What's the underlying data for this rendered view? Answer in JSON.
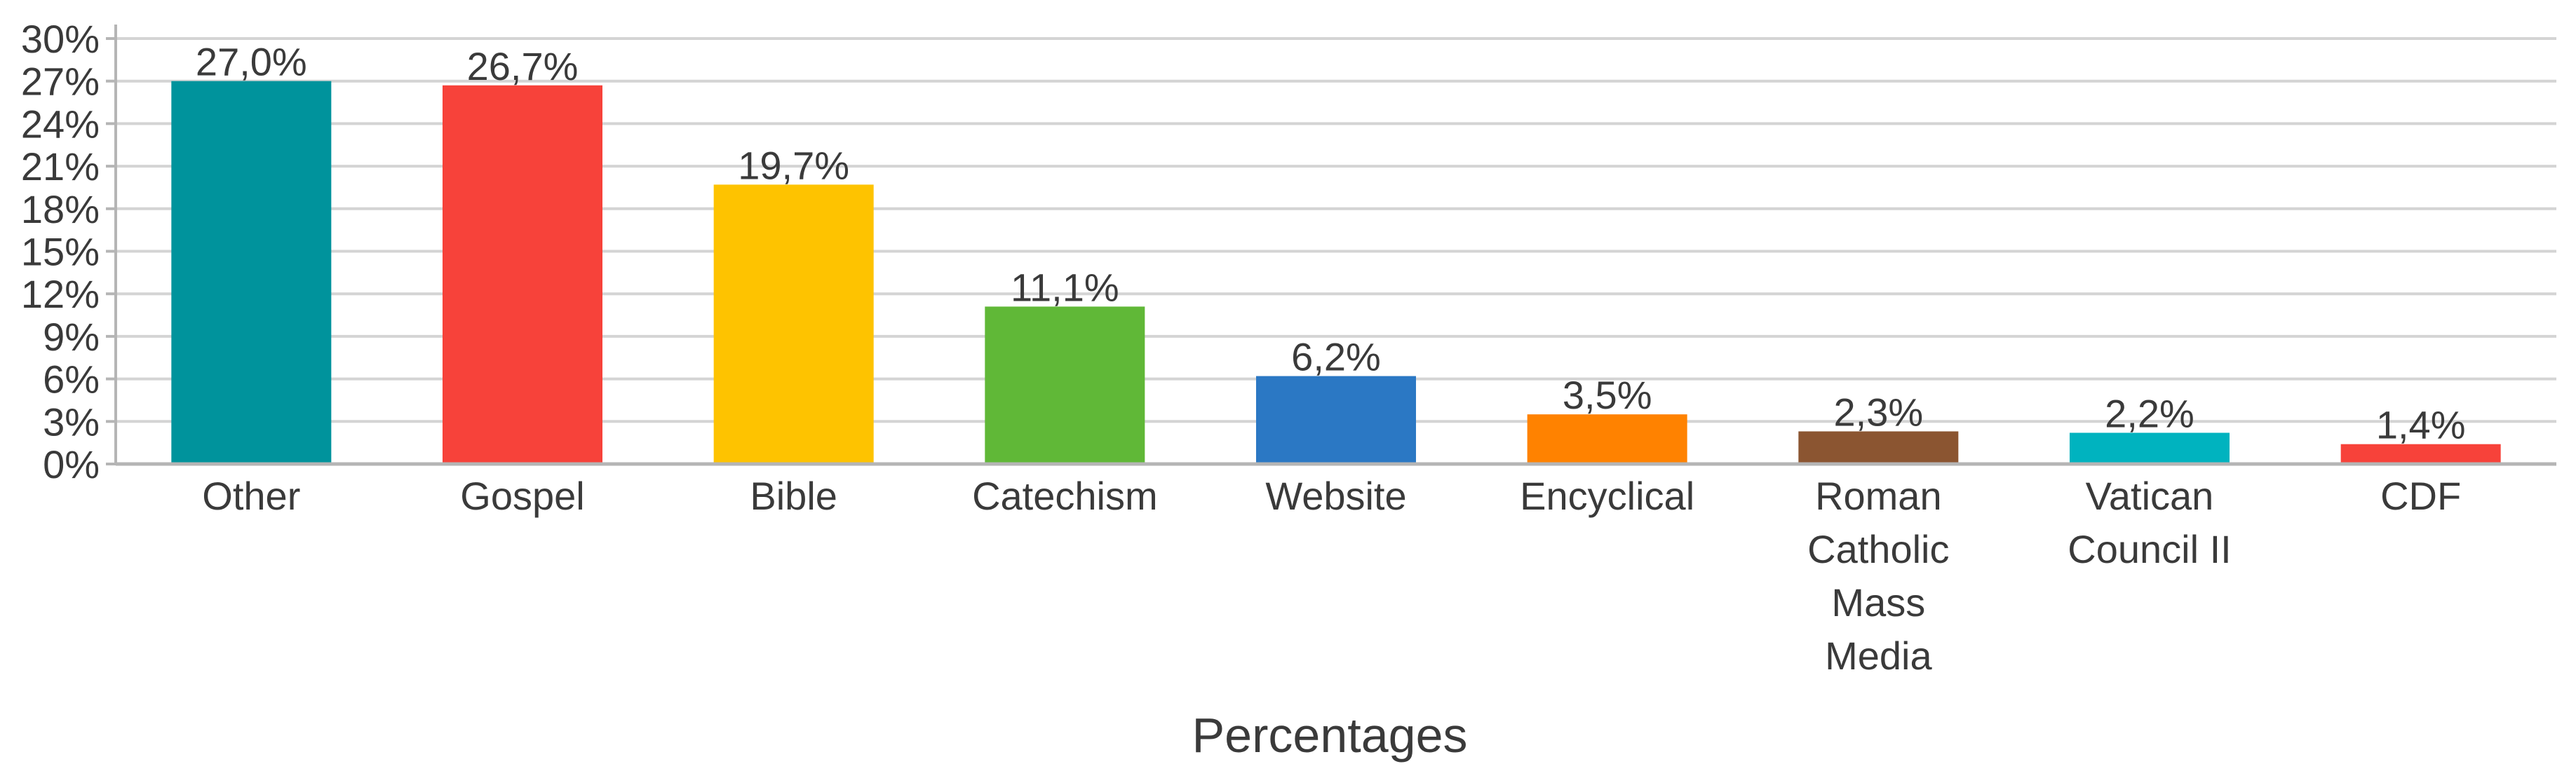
{
  "chart_data": {
    "type": "bar",
    "categories": [
      "Other",
      "Gospel",
      "Bible",
      "Catechism",
      "Website",
      "Encyclical",
      "Roman Catholic Mass Media",
      "Vatican Council II",
      "CDF"
    ],
    "category_lines": [
      [
        "Other"
      ],
      [
        "Gospel"
      ],
      [
        "Bible"
      ],
      [
        "Catechism"
      ],
      [
        "Website"
      ],
      [
        "Encyclical"
      ],
      [
        "Roman",
        "Catholic",
        "Mass",
        "Media"
      ],
      [
        "Vatican",
        "Council II"
      ],
      [
        "CDF"
      ]
    ],
    "values": [
      27.0,
      26.7,
      19.7,
      11.1,
      6.2,
      3.5,
      2.3,
      2.2,
      1.4
    ],
    "value_labels": [
      "27,0%",
      "26,7%",
      "19,7%",
      "11,1%",
      "6,2%",
      "3,5%",
      "2,3%",
      "2,2%",
      "1,4%"
    ],
    "colors": [
      "#00939c",
      "#f7423a",
      "#fec300",
      "#60b837",
      "#2b78c4",
      "#ff8200",
      "#8b5531",
      "#00b3bf",
      "#f7423a"
    ],
    "yticks": [
      0,
      3,
      6,
      9,
      12,
      15,
      18,
      21,
      24,
      27,
      30
    ],
    "ytick_labels": [
      "0%",
      "3%",
      "6%",
      "9%",
      "12%",
      "15%",
      "18%",
      "21%",
      "24%",
      "27%",
      "30%"
    ],
    "ylim": [
      0,
      30
    ],
    "xlabel": "Percentages",
    "ylabel": "",
    "title": "",
    "grid": true,
    "gridline_color": "#d4d4d4",
    "axis_color": "#b5b5b5"
  }
}
